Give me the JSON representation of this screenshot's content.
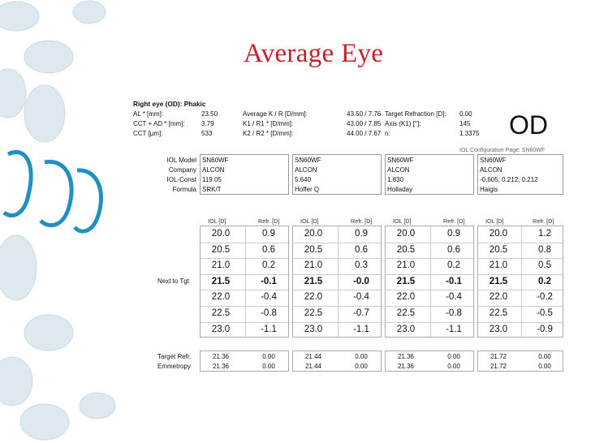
{
  "slide_title": "Average Eye",
  "header": {
    "title": "Right eye (OD): Phakic",
    "rows": [
      [
        "AL * [mm]:",
        "23.50",
        "Average K / R [D/mm]:",
        "43.50 / 7.76",
        "Target Refraction [D]:",
        "0.00"
      ],
      [
        "CCT + AD * [mm]:",
        "3.79",
        "K1 / R1 * [D/mm]:",
        "43.00 / 7.85",
        "Axis (K1) [°]:",
        "145"
      ],
      [
        "CCT [µm]:",
        "533",
        "K2 / R2 * [D/mm]:",
        "44.00 / 7.67",
        "n:",
        "1.3375"
      ]
    ],
    "eye_label": "OD",
    "config_page": "IOL Configuration Page: SN60WF"
  },
  "lens_labels": [
    "IOL Model",
    "Company",
    "IOL-Const",
    "Formula"
  ],
  "lenses": [
    {
      "model": "SN60WF",
      "company": "ALCON",
      "const": "119.05",
      "formula": "SRK/T"
    },
    {
      "model": "SN60WF",
      "company": "ALCON",
      "const": "5.640",
      "formula": "Hoffer Q"
    },
    {
      "model": "SN60WF",
      "company": "ALCON",
      "const": "1.830",
      "formula": "Holladay"
    },
    {
      "model": "SN60WF",
      "company": "ALCON",
      "const": "-0.605; 0.212; 0.212",
      "formula": "Haigis"
    }
  ],
  "col_headers": {
    "iol": "IOL [D]",
    "refr": "Refr. [D]"
  },
  "next_to_tgt_label": "Next to Tgt",
  "tables": [
    {
      "iol": [
        "20.0",
        "20.5",
        "21.0",
        "21.5",
        "22.0",
        "22.5",
        "23.0"
      ],
      "refr": [
        "0.9",
        "0.6",
        "0.2",
        "-0.1",
        "-0.4",
        "-0.8",
        "-1.1"
      ]
    },
    {
      "iol": [
        "20.0",
        "20.5",
        "21.0",
        "21.5",
        "22.0",
        "22.5",
        "23.0"
      ],
      "refr": [
        "0.9",
        "0.6",
        "0.3",
        "-0.0",
        "-0.4",
        "-0.7",
        "-1.1"
      ]
    },
    {
      "iol": [
        "20.0",
        "20.5",
        "21.0",
        "21.5",
        "22.0",
        "22.5",
        "23.0"
      ],
      "refr": [
        "0.9",
        "0.6",
        "0.2",
        "-0.1",
        "-0.4",
        "-0.8",
        "-1.1"
      ]
    },
    {
      "iol": [
        "20.0",
        "20.5",
        "21.0",
        "21.5",
        "22.0",
        "22.5",
        "23.0"
      ],
      "refr": [
        "1.2",
        "0.8",
        "0.5",
        "0.2",
        "-0.2",
        "-0.5",
        "-0.9"
      ]
    }
  ],
  "summary_labels": [
    "Target Refr.",
    "Emmetropy"
  ],
  "summary": [
    {
      "target": [
        "21.36",
        "0.00"
      ],
      "emm": [
        "21.36",
        "0.00"
      ]
    },
    {
      "target": [
        "21.44",
        "0.00"
      ],
      "emm": [
        "21.44",
        "0.00"
      ]
    },
    {
      "target": [
        "21.36",
        "0.00"
      ],
      "emm": [
        "21.36",
        "0.00"
      ]
    },
    {
      "target": [
        "21.72",
        "0.00"
      ],
      "emm": [
        "21.72",
        "0.00"
      ]
    }
  ],
  "colors": {
    "title": "#c8202a",
    "deco_blue": "#1f8fc4",
    "deco_light": "#d6e6ee"
  }
}
